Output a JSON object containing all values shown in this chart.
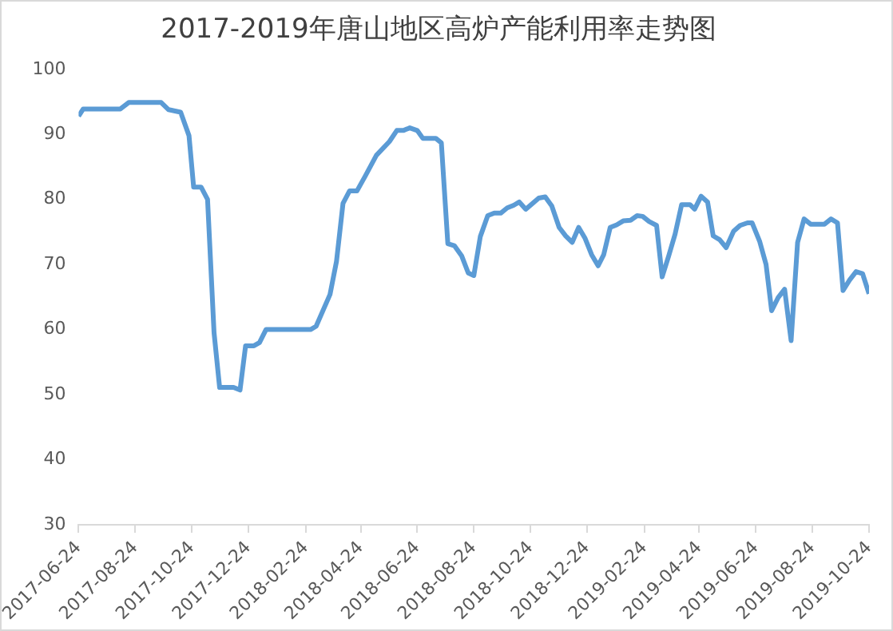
{
  "chart_data": {
    "type": "line",
    "title": "2017-2019年唐山地区高炉产能利用率走势图",
    "x": [
      "2017-06-24",
      "2017-06-29",
      "2017-08-08",
      "2017-08-17",
      "2017-09-21",
      "2017-09-29",
      "2017-10-12",
      "2017-10-21",
      "2017-10-26",
      "2017-11-03",
      "2017-11-10",
      "2017-11-17",
      "2017-11-23",
      "2017-12-08",
      "2017-12-15",
      "2017-12-21",
      "2017-12-30",
      "2018-01-05",
      "2018-01-12",
      "2018-03-01",
      "2018-03-07",
      "2018-03-22",
      "2018-03-29",
      "2018-04-05",
      "2018-04-12",
      "2018-04-20",
      "2018-04-29",
      "2018-05-11",
      "2018-05-25",
      "2018-06-02",
      "2018-06-09",
      "2018-06-16",
      "2018-06-24",
      "2018-06-30",
      "2018-07-14",
      "2018-07-20",
      "2018-07-27",
      "2018-08-03",
      "2018-08-11",
      "2018-08-18",
      "2018-08-24",
      "2018-08-31",
      "2018-09-08",
      "2018-09-15",
      "2018-09-22",
      "2018-09-29",
      "2018-10-06",
      "2018-10-12",
      "2018-10-19",
      "2018-11-02",
      "2018-11-09",
      "2018-11-16",
      "2018-11-24",
      "2018-12-01",
      "2018-12-08",
      "2018-12-15",
      "2018-12-22",
      "2018-12-29",
      "2019-01-05",
      "2019-01-11",
      "2019-01-18",
      "2019-01-25",
      "2019-02-01",
      "2019-02-09",
      "2019-02-16",
      "2019-02-22",
      "2019-03-01",
      "2019-03-09",
      "2019-03-15",
      "2019-03-22",
      "2019-03-29",
      "2019-04-05",
      "2019-04-14",
      "2019-04-19",
      "2019-04-26",
      "2019-05-03",
      "2019-05-09",
      "2019-05-16",
      "2019-05-23",
      "2019-05-31",
      "2019-06-07",
      "2019-06-15",
      "2019-06-20",
      "2019-06-28",
      "2019-07-05",
      "2019-07-11",
      "2019-07-18",
      "2019-07-25",
      "2019-08-01",
      "2019-08-08",
      "2019-08-15",
      "2019-08-22",
      "2019-09-06",
      "2019-09-13",
      "2019-09-20",
      "2019-09-26",
      "2019-10-03",
      "2019-10-10",
      "2019-10-17",
      "2019-10-24"
    ],
    "series": [
      {
        "color": "#5b9bd5",
        "values": [
          92.8,
          93.9,
          93.9,
          94.9,
          94.9,
          93.8,
          93.4,
          89.8,
          81.9,
          81.9,
          80.0,
          59.5,
          51.1,
          51.1,
          50.7,
          57.5,
          57.5,
          58.0,
          60.0,
          60.0,
          60.5,
          65.4,
          70.5,
          79.4,
          81.3,
          81.3,
          83.6,
          86.8,
          88.9,
          90.6,
          90.6,
          91.0,
          90.6,
          89.4,
          89.4,
          88.7,
          73.2,
          72.9,
          71.3,
          68.7,
          68.3,
          74.3,
          77.5,
          77.9,
          77.9,
          78.7,
          79.1,
          79.6,
          78.5,
          80.2,
          80.4,
          79.0,
          75.7,
          74.4,
          73.4,
          75.7,
          74.0,
          71.5,
          69.8,
          71.5,
          75.7,
          76.1,
          76.7,
          76.8,
          77.5,
          77.4,
          76.6,
          76.0,
          68.1,
          71.3,
          74.7,
          79.2,
          79.2,
          78.5,
          80.5,
          79.6,
          74.4,
          73.8,
          72.6,
          75.1,
          76.0,
          76.4,
          76.4,
          73.6,
          70.0,
          62.9,
          64.9,
          66.2,
          58.3,
          73.4,
          77.0,
          76.2,
          76.2,
          77.0,
          76.4,
          66.0,
          67.6,
          68.9,
          68.6,
          65.5
        ]
      }
    ],
    "xlim": [
      "2017-06-24",
      "2019-10-24"
    ],
    "xticks": [
      "2017-06-24",
      "2017-08-24",
      "2017-10-24",
      "2017-12-24",
      "2018-02-24",
      "2018-04-24",
      "2018-06-24",
      "2018-08-24",
      "2018-10-24",
      "2018-12-24",
      "2019-02-24",
      "2019-04-24",
      "2019-06-24",
      "2019-08-24",
      "2019-10-24"
    ],
    "ylim": [
      30,
      100
    ],
    "yticks": [
      30,
      40,
      50,
      60,
      70,
      80,
      90,
      100
    ],
    "grid": false,
    "legend": false,
    "marker": "none",
    "line_style": "solid"
  }
}
